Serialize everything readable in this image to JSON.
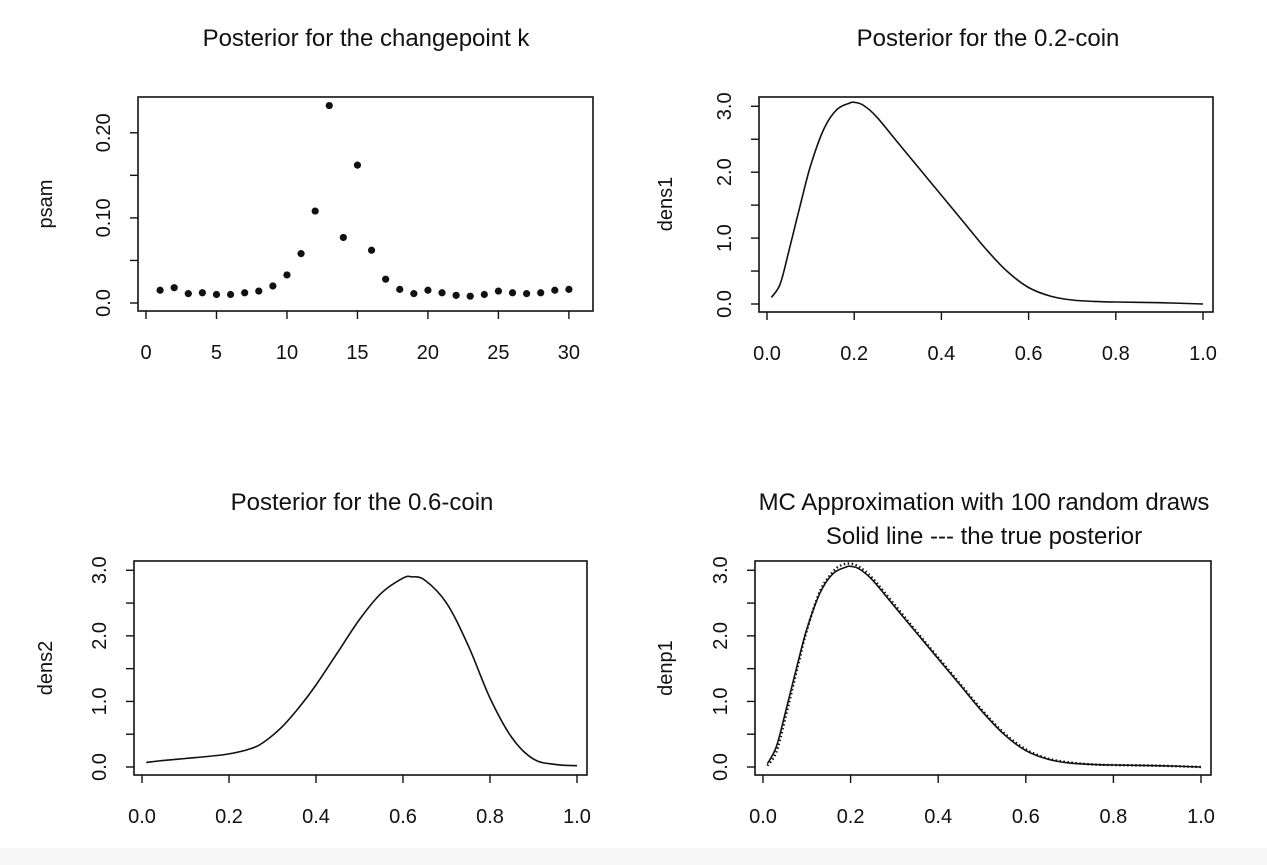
{
  "chart_data": [
    {
      "id": "p1",
      "type": "scatter",
      "title": "Posterior for the changepoint k",
      "xlabel": "",
      "ylabel": "psam",
      "xlim": [
        0,
        31
      ],
      "ylim": [
        0,
        0.235
      ],
      "xticks": [
        0,
        5,
        10,
        15,
        20,
        25,
        30
      ],
      "xtick_labels": [
        "0",
        "5",
        "10",
        "15",
        "20",
        "25",
        "30"
      ],
      "yticks": [
        0.0,
        0.05,
        0.1,
        0.15,
        0.2
      ],
      "ytick_labels": [
        "0.0",
        "",
        "0.10",
        "",
        "0.20"
      ],
      "x": [
        1,
        2,
        3,
        4,
        5,
        6,
        7,
        8,
        9,
        10,
        11,
        12,
        13,
        14,
        15,
        16,
        17,
        18,
        19,
        20,
        21,
        22,
        23,
        24,
        25,
        26,
        27,
        28,
        29,
        30
      ],
      "y": [
        0.015,
        0.018,
        0.011,
        0.012,
        0.01,
        0.01,
        0.012,
        0.014,
        0.02,
        0.033,
        0.058,
        0.108,
        0.232,
        0.077,
        0.162,
        0.062,
        0.028,
        0.016,
        0.011,
        0.015,
        0.012,
        0.009,
        0.008,
        0.01,
        0.014,
        0.012,
        0.011,
        0.012,
        0.015,
        0.016
      ]
    },
    {
      "id": "p2",
      "type": "line",
      "title": "Posterior for the 0.2-coin",
      "xlabel": "",
      "ylabel": "dens1",
      "xlim": [
        0,
        1
      ],
      "ylim": [
        0,
        3.05
      ],
      "xticks": [
        0.0,
        0.2,
        0.4,
        0.6,
        0.8,
        1.0
      ],
      "xtick_labels": [
        "0.0",
        "0.2",
        "0.4",
        "0.6",
        "0.8",
        "1.0"
      ],
      "yticks": [
        0.0,
        0.5,
        1.0,
        1.5,
        2.0,
        2.5,
        3.0
      ],
      "ytick_labels": [
        "0.0",
        "",
        "1.0",
        "",
        "2.0",
        "",
        "3.0"
      ],
      "series": [
        {
          "style": "solid",
          "x": [
            0.01,
            0.03,
            0.05,
            0.08,
            0.1,
            0.13,
            0.16,
            0.19,
            0.2,
            0.22,
            0.25,
            0.3,
            0.35,
            0.4,
            0.45,
            0.5,
            0.55,
            0.6,
            0.65,
            0.7,
            0.75,
            0.8,
            0.9,
            1.0
          ],
          "y": [
            0.1,
            0.3,
            0.8,
            1.6,
            2.1,
            2.65,
            2.95,
            3.05,
            3.06,
            3.02,
            2.85,
            2.45,
            2.05,
            1.65,
            1.25,
            0.85,
            0.5,
            0.25,
            0.12,
            0.06,
            0.04,
            0.03,
            0.02,
            0.0
          ]
        }
      ]
    },
    {
      "id": "p3",
      "type": "line",
      "title": "Posterior for the 0.6-coin",
      "xlabel": "",
      "ylabel": "dens2",
      "xlim": [
        0,
        1
      ],
      "ylim": [
        0,
        3.05
      ],
      "xticks": [
        0.0,
        0.2,
        0.4,
        0.6,
        0.8,
        1.0
      ],
      "xtick_labels": [
        "0.0",
        "0.2",
        "0.4",
        "0.6",
        "0.8",
        "1.0"
      ],
      "yticks": [
        0.0,
        0.5,
        1.0,
        1.5,
        2.0,
        2.5,
        3.0
      ],
      "ytick_labels": [
        "0.0",
        "",
        "1.0",
        "",
        "2.0",
        "",
        "3.0"
      ],
      "series": [
        {
          "style": "solid",
          "x": [
            0.01,
            0.05,
            0.1,
            0.15,
            0.2,
            0.25,
            0.28,
            0.32,
            0.36,
            0.4,
            0.45,
            0.5,
            0.55,
            0.6,
            0.62,
            0.65,
            0.7,
            0.75,
            0.8,
            0.85,
            0.9,
            0.95,
            1.0
          ],
          "y": [
            0.07,
            0.1,
            0.13,
            0.16,
            0.2,
            0.28,
            0.38,
            0.6,
            0.9,
            1.25,
            1.75,
            2.25,
            2.65,
            2.88,
            2.9,
            2.85,
            2.5,
            1.85,
            1.05,
            0.45,
            0.12,
            0.04,
            0.02
          ]
        }
      ]
    },
    {
      "id": "p4",
      "type": "line",
      "title": "MC Approximation with 100 random draws",
      "subtitle": "Solid line --- the true posterior",
      "xlabel": "",
      "ylabel": "denp1",
      "xlim": [
        0,
        1
      ],
      "ylim": [
        0,
        3.05
      ],
      "xticks": [
        0.0,
        0.2,
        0.4,
        0.6,
        0.8,
        1.0
      ],
      "xtick_labels": [
        "0.0",
        "0.2",
        "0.4",
        "0.6",
        "0.8",
        "1.0"
      ],
      "yticks": [
        0.0,
        0.5,
        1.0,
        1.5,
        2.0,
        2.5,
        3.0
      ],
      "ytick_labels": [
        "0.0",
        "",
        "1.0",
        "",
        "2.0",
        "",
        "3.0"
      ],
      "series": [
        {
          "style": "solid",
          "x": [
            0.01,
            0.03,
            0.05,
            0.08,
            0.1,
            0.13,
            0.16,
            0.19,
            0.2,
            0.22,
            0.25,
            0.3,
            0.35,
            0.4,
            0.45,
            0.5,
            0.55,
            0.6,
            0.65,
            0.7,
            0.75,
            0.8,
            0.9,
            1.0
          ],
          "y": [
            0.05,
            0.3,
            0.8,
            1.6,
            2.1,
            2.65,
            2.95,
            3.05,
            3.06,
            3.02,
            2.85,
            2.45,
            2.05,
            1.65,
            1.25,
            0.85,
            0.5,
            0.25,
            0.12,
            0.06,
            0.04,
            0.03,
            0.02,
            0.0
          ]
        },
        {
          "style": "dotted",
          "x": [
            0.01,
            0.03,
            0.05,
            0.08,
            0.1,
            0.13,
            0.16,
            0.18,
            0.2,
            0.22,
            0.25,
            0.3,
            0.35,
            0.4,
            0.45,
            0.5,
            0.55,
            0.6,
            0.65,
            0.7,
            0.75,
            0.8,
            0.9,
            1.0
          ],
          "y": [
            0.02,
            0.22,
            0.72,
            1.55,
            2.08,
            2.68,
            2.98,
            3.08,
            3.1,
            3.05,
            2.88,
            2.48,
            2.07,
            1.67,
            1.27,
            0.87,
            0.52,
            0.27,
            0.13,
            0.07,
            0.04,
            0.03,
            0.02,
            0.0
          ]
        }
      ]
    }
  ]
}
